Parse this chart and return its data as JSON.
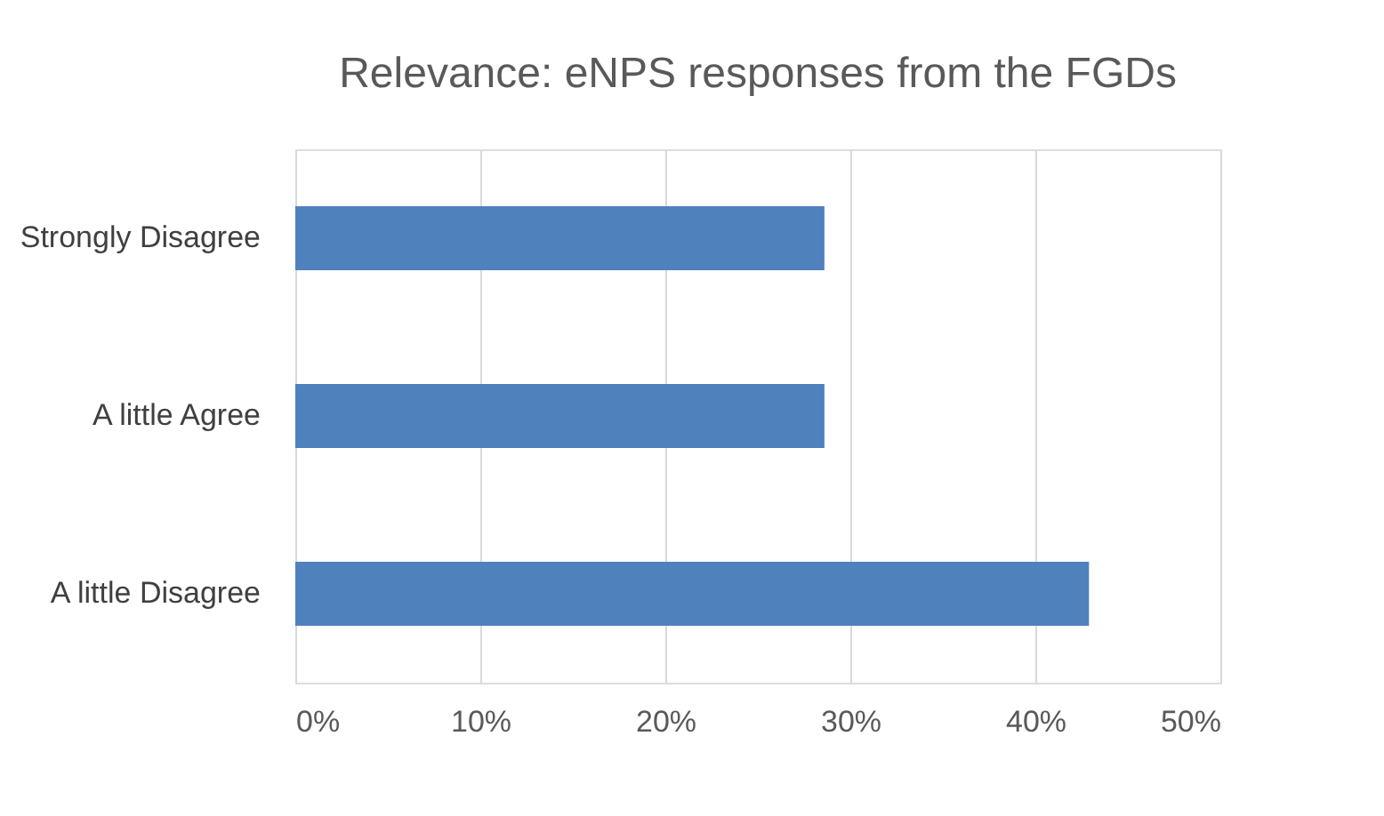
{
  "chart_data": {
    "type": "bar",
    "orientation": "horizontal",
    "title": "Relevance: eNPS responses from the FGDs",
    "categories": [
      "Strongly Disagree",
      "A little Agree",
      "A little Disagree"
    ],
    "values": [
      28.6,
      28.6,
      42.9
    ],
    "color": "#4f81bd",
    "xlim": [
      0,
      50
    ],
    "xticks": [
      {
        "value": 0,
        "label": "0%"
      },
      {
        "value": 10,
        "label": "10%"
      },
      {
        "value": 20,
        "label": "20%"
      },
      {
        "value": 30,
        "label": "30%"
      },
      {
        "value": 40,
        "label": "40%"
      },
      {
        "value": 50,
        "label": "50%"
      }
    ],
    "grid": "x"
  }
}
